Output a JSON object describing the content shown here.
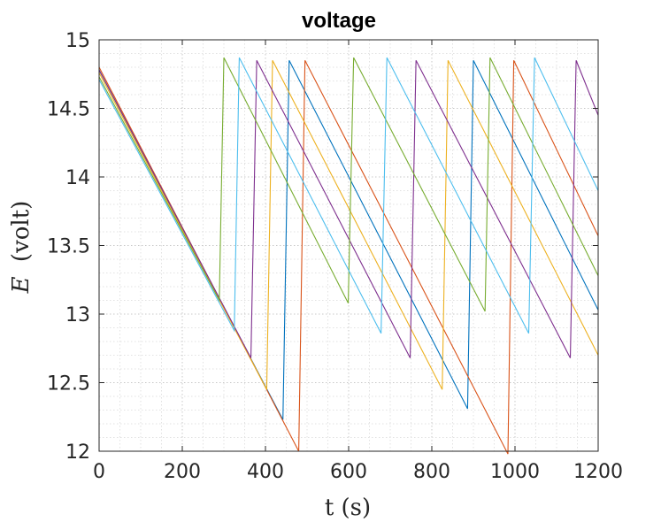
{
  "chart_data": {
    "type": "line",
    "title": "voltage",
    "xlabel": "t (s)",
    "ylabel_symbol": "E",
    "ylabel_unit": "(volt)",
    "xlim": [
      0,
      1200
    ],
    "ylim": [
      12,
      15
    ],
    "xticks": [
      0,
      200,
      400,
      600,
      800,
      1000,
      1200
    ],
    "xtick_labels": [
      "0",
      "200",
      "400",
      "600",
      "800",
      "1000",
      "1200"
    ],
    "yticks": [
      12,
      12.5,
      13,
      13.5,
      14,
      14.5,
      15
    ],
    "ytick_labels": [
      "12",
      "12.5",
      "13",
      "13.5",
      "14",
      "14.5",
      "15"
    ],
    "grid": "major and minor, dotted",
    "legend": "none",
    "series": [
      {
        "color": "#0072BD",
        "x": [
          0,
          442,
          457,
          886,
          900,
          1200
        ],
        "y": [
          14.78,
          12.23,
          14.85,
          12.31,
          14.85,
          13.03
        ]
      },
      {
        "color": "#D95319",
        "x": [
          0,
          480,
          495,
          983,
          997,
          1200
        ],
        "y": [
          14.8,
          12.0,
          14.85,
          11.98,
          14.85,
          13.57
        ]
      },
      {
        "color": "#EDB120",
        "x": [
          0,
          403,
          417,
          825,
          839,
          1200
        ],
        "y": [
          14.76,
          12.45,
          14.85,
          12.45,
          14.85,
          12.7
        ]
      },
      {
        "color": "#7E2F8E",
        "x": [
          0,
          365,
          379,
          748,
          762,
          1133,
          1147,
          1200
        ],
        "y": [
          14.78,
          12.68,
          14.85,
          12.68,
          14.85,
          12.68,
          14.85,
          14.45
        ]
      },
      {
        "color": "#77AC30",
        "x": [
          0,
          289,
          300,
          599,
          612,
          928,
          940,
          1200
        ],
        "y": [
          14.73,
          13.1,
          14.87,
          13.08,
          14.87,
          13.02,
          14.87,
          13.28
        ]
      },
      {
        "color": "#4DBEEE",
        "x": [
          0,
          325,
          337,
          678,
          692,
          1033,
          1047,
          1200
        ],
        "y": [
          14.71,
          12.88,
          14.87,
          12.86,
          14.87,
          12.86,
          14.87,
          13.9
        ]
      }
    ]
  }
}
